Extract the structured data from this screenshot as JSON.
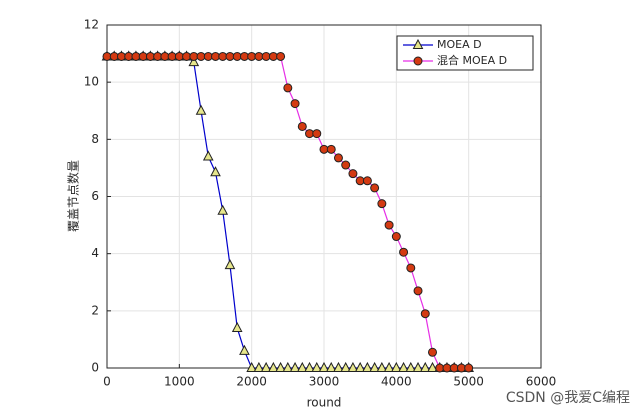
{
  "chart_data": {
    "type": "line",
    "x": [
      0,
      100,
      200,
      300,
      400,
      500,
      600,
      700,
      800,
      900,
      1000,
      1100,
      1200,
      1300,
      1400,
      1500,
      1600,
      1700,
      1800,
      1900,
      2000,
      2100,
      2200,
      2300,
      2400,
      2500,
      2600,
      2700,
      2800,
      2900,
      3000,
      3100,
      3200,
      3300,
      3400,
      3500,
      3600,
      3700,
      3800,
      3900,
      4000,
      4100,
      4200,
      4300,
      4400,
      4500,
      4600,
      4700,
      4800,
      4900,
      5000
    ],
    "series": [
      {
        "name": "MOEA D",
        "color": "#0000cc",
        "marker": "triangle",
        "marker_color": "#e6e68c",
        "values": [
          10.9,
          10.9,
          10.9,
          10.9,
          10.9,
          10.9,
          10.9,
          10.9,
          10.9,
          10.9,
          10.9,
          10.9,
          10.7,
          9.0,
          7.4,
          6.85,
          5.5,
          3.6,
          1.4,
          0.6,
          0,
          0,
          0,
          0,
          0,
          0,
          0,
          0,
          0,
          0,
          0,
          0,
          0,
          0,
          0,
          0,
          0,
          0,
          0,
          0,
          0,
          0,
          0,
          0,
          0,
          0,
          0,
          0,
          0,
          0,
          0
        ]
      },
      {
        "name": "混合 MOEA D",
        "color": "#e62fe6",
        "marker": "circle",
        "marker_color": "#d43a12",
        "values": [
          10.9,
          10.9,
          10.9,
          10.9,
          10.9,
          10.9,
          10.9,
          10.9,
          10.9,
          10.9,
          10.9,
          10.9,
          10.9,
          10.9,
          10.9,
          10.9,
          10.9,
          10.9,
          10.9,
          10.9,
          10.9,
          10.9,
          10.9,
          10.9,
          10.9,
          9.8,
          9.25,
          8.45,
          8.2,
          8.2,
          7.65,
          7.65,
          7.35,
          7.1,
          6.8,
          6.55,
          6.55,
          6.3,
          5.75,
          5.0,
          4.6,
          4.05,
          3.5,
          2.7,
          1.9,
          0.55,
          0,
          0,
          0,
          0,
          0
        ]
      }
    ],
    "xlabel": "round",
    "ylabel": "覆盖节点数量",
    "xlim": [
      0,
      6000
    ],
    "xticks": [
      0,
      1000,
      2000,
      3000,
      4000,
      5000,
      6000
    ],
    "ylim": [
      0,
      12
    ],
    "yticks": [
      0,
      2,
      4,
      6,
      8,
      10,
      12
    ],
    "grid": true,
    "legend": "upper right"
  },
  "watermark": "CSDN @我爱C编程"
}
